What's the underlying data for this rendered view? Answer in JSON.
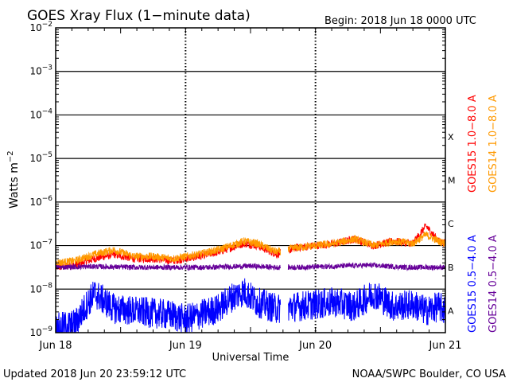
{
  "chart_data": {
    "type": "line",
    "title": "GOES Xray Flux (1−minute data)",
    "begin_label": "Begin:  2018 Jun 18 0000 UTC",
    "xlabel": "Universal Time",
    "ylabel": "Watts m",
    "ylabel_sup": "−2",
    "y_scale": "log",
    "ylim_exp": [
      -9,
      -2
    ],
    "y_ticks": [
      {
        "exp": "−2"
      },
      {
        "exp": "−3"
      },
      {
        "exp": "−4"
      },
      {
        "exp": "−5"
      },
      {
        "exp": "−6"
      },
      {
        "exp": "−7"
      },
      {
        "exp": "−8"
      },
      {
        "exp": "−9"
      }
    ],
    "x_ticks": [
      "Jun 18",
      "Jun 19",
      "Jun 20",
      "Jun 21"
    ],
    "x_range_days": [
      0,
      3
    ],
    "flare_classes": [
      {
        "label": "X",
        "value": -4.5
      },
      {
        "label": "M",
        "value": -5.5
      },
      {
        "label": "C",
        "value": -6.5
      },
      {
        "label": "B",
        "value": -7.5
      },
      {
        "label": "A",
        "value": -8.5
      }
    ],
    "data_gap_days": [
      1.73,
      1.79
    ],
    "series": [
      {
        "name": "GOES15 1.0−8.0 A",
        "color": "#ff0000",
        "band": "long",
        "x": [
          0,
          0.15,
          0.3,
          0.45,
          0.6,
          0.75,
          0.9,
          1.0,
          1.1,
          1.25,
          1.35,
          1.45,
          1.55,
          1.7,
          1.85,
          2.0,
          2.15,
          2.3,
          2.45,
          2.6,
          2.75,
          2.85,
          2.95,
          3.0
        ],
        "log10_y": [
          -7.5,
          -7.45,
          -7.3,
          -7.2,
          -7.3,
          -7.3,
          -7.35,
          -7.3,
          -7.25,
          -7.15,
          -7.05,
          -6.95,
          -7.0,
          -7.2,
          -7.05,
          -7.0,
          -6.95,
          -6.85,
          -7.0,
          -6.9,
          -6.95,
          -6.55,
          -6.9,
          -6.95
        ]
      },
      {
        "name": "GOES14 1.0−8.0 A",
        "color": "#ff9900",
        "band": "long",
        "x": [
          0,
          0.15,
          0.3,
          0.45,
          0.6,
          0.75,
          0.9,
          1.0,
          1.1,
          1.25,
          1.35,
          1.45,
          1.55,
          1.7,
          1.85,
          2.0,
          2.15,
          2.3,
          2.45,
          2.6,
          2.75,
          2.85,
          2.95,
          3.0
        ],
        "log10_y": [
          -7.4,
          -7.35,
          -7.2,
          -7.1,
          -7.25,
          -7.25,
          -7.3,
          -7.25,
          -7.2,
          -7.1,
          -7.0,
          -6.9,
          -6.95,
          -7.15,
          -7.05,
          -7.0,
          -6.95,
          -6.85,
          -7.0,
          -6.9,
          -6.95,
          -6.75,
          -6.9,
          -6.95
        ]
      },
      {
        "name": "GOES15 0.5−4.0 A",
        "color": "#0000ff",
        "band": "short",
        "x": [
          0,
          0.15,
          0.25,
          0.3,
          0.45,
          0.6,
          0.75,
          0.9,
          1.0,
          1.1,
          1.25,
          1.35,
          1.45,
          1.55,
          1.7,
          1.85,
          2.0,
          2.15,
          2.3,
          2.45,
          2.6,
          2.75,
          2.85,
          2.95,
          3.0
        ],
        "log10_y": [
          -8.9,
          -8.8,
          -8.3,
          -8.1,
          -8.45,
          -8.5,
          -8.55,
          -8.6,
          -8.7,
          -8.6,
          -8.45,
          -8.2,
          -8.05,
          -8.3,
          -8.45,
          -8.4,
          -8.35,
          -8.3,
          -8.4,
          -8.1,
          -8.4,
          -8.35,
          -8.5,
          -8.4,
          -8.5
        ]
      },
      {
        "name": "GOES14 0.5−4.0 A",
        "color": "#660099",
        "band": "short",
        "x": [
          0,
          0.3,
          0.6,
          0.9,
          1.2,
          1.5,
          1.7,
          1.85,
          2.1,
          2.4,
          2.7,
          3.0
        ],
        "log10_y": [
          -7.5,
          -7.48,
          -7.5,
          -7.5,
          -7.5,
          -7.47,
          -7.5,
          -7.5,
          -7.48,
          -7.45,
          -7.5,
          -7.5
        ]
      }
    ]
  },
  "footer": {
    "updated": "Updated 2018 Jun 20 23:59:12 UTC",
    "credit": "NOAA/SWPC Boulder, CO USA"
  }
}
